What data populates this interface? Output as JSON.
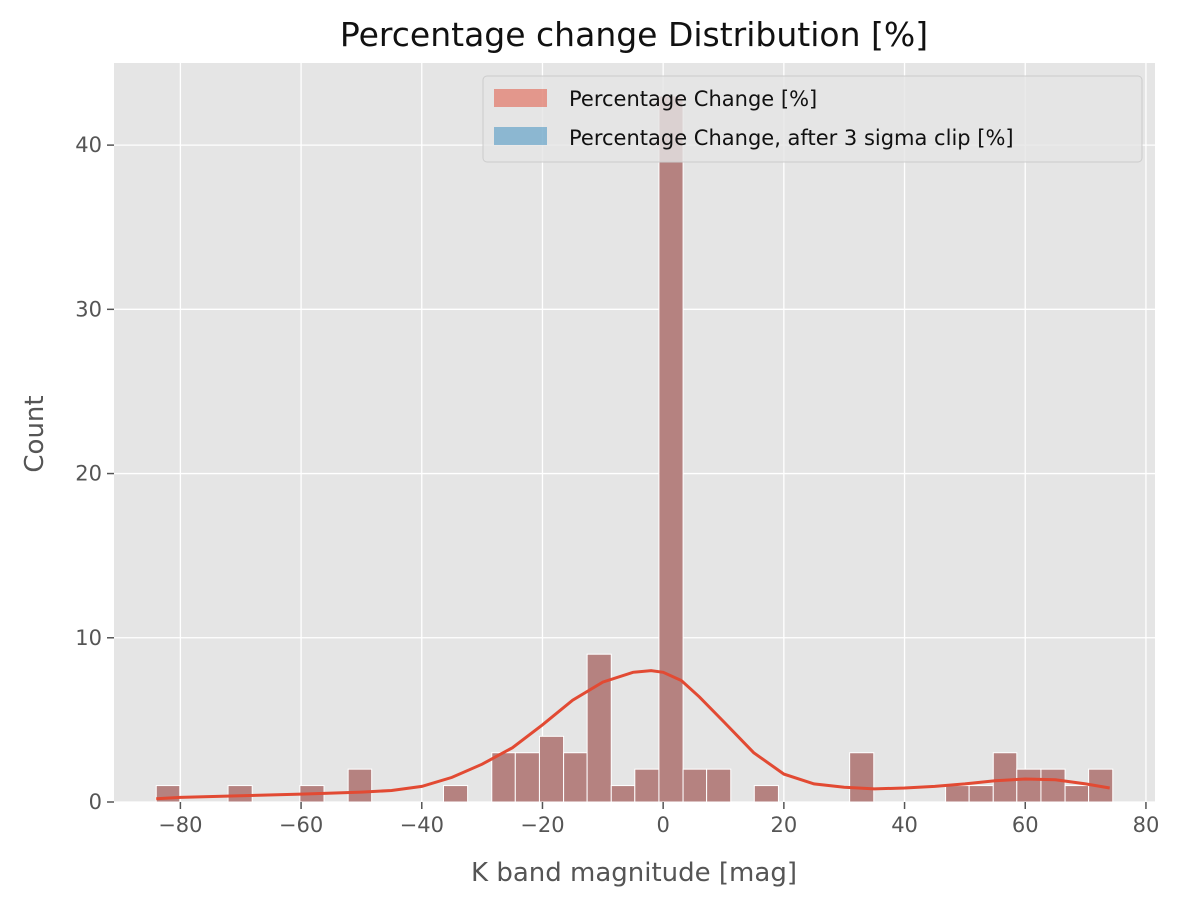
{
  "chart_data": {
    "type": "bar",
    "title": "Percentage change Distribution [%]",
    "xlabel": "K band magnitude [mag]",
    "ylabel": "Count",
    "xlim": [
      -91,
      81.5
    ],
    "ylim": [
      0,
      45
    ],
    "xticks": [
      -80,
      -60,
      -40,
      -20,
      0,
      20,
      40,
      60,
      80
    ],
    "yticks": [
      0,
      10,
      20,
      30,
      40
    ],
    "xtick_labels": [
      "−80",
      "−60",
      "−40",
      "−20",
      "0",
      "20",
      "40",
      "60",
      "80"
    ],
    "ytick_labels": [
      "0",
      "10",
      "20",
      "30",
      "40"
    ],
    "grid": true,
    "legend_position": "top-right",
    "series": [
      {
        "name": "Percentage Change [%]",
        "color": "#E24A33",
        "bins": [
          {
            "x0": -84.0,
            "x1": -80.1,
            "count": 1
          },
          {
            "x0": -72.1,
            "x1": -68.1,
            "count": 1
          },
          {
            "x0": -60.2,
            "x1": -56.2,
            "count": 1
          },
          {
            "x0": -52.2,
            "x1": -48.3,
            "count": 2
          },
          {
            "x0": -36.4,
            "x1": -32.4,
            "count": 1
          },
          {
            "x0": -28.4,
            "x1": -24.5,
            "count": 3
          },
          {
            "x0": -24.5,
            "x1": -20.5,
            "count": 3
          },
          {
            "x0": -20.5,
            "x1": -16.5,
            "count": 4
          },
          {
            "x0": -16.5,
            "x1": -12.6,
            "count": 3
          },
          {
            "x0": -12.6,
            "x1": -8.6,
            "count": 9
          },
          {
            "x0": -8.6,
            "x1": -4.7,
            "count": 1
          },
          {
            "x0": -4.7,
            "x1": -0.7,
            "count": 2
          },
          {
            "x0": -0.7,
            "x1": 3.3,
            "count": 43
          },
          {
            "x0": 3.3,
            "x1": 7.2,
            "count": 2
          },
          {
            "x0": 7.2,
            "x1": 11.2,
            "count": 2
          },
          {
            "x0": 15.1,
            "x1": 19.1,
            "count": 1
          },
          {
            "x0": 30.9,
            "x1": 34.9,
            "count": 3
          },
          {
            "x0": 46.8,
            "x1": 50.7,
            "count": 1
          },
          {
            "x0": 50.7,
            "x1": 54.7,
            "count": 1
          },
          {
            "x0": 54.7,
            "x1": 58.6,
            "count": 3
          },
          {
            "x0": 58.6,
            "x1": 62.6,
            "count": 2
          },
          {
            "x0": 62.6,
            "x1": 66.6,
            "count": 2
          },
          {
            "x0": 66.6,
            "x1": 70.5,
            "count": 1
          },
          {
            "x0": 70.5,
            "x1": 74.5,
            "count": 2
          }
        ]
      },
      {
        "name": "Percentage Change, after 3 sigma clip [%]",
        "color": "#348ABD",
        "bins": []
      }
    ],
    "kde": {
      "color": "#E24A33",
      "x": [
        -84,
        -80,
        -70,
        -60,
        -50,
        -45,
        -40,
        -35,
        -30,
        -25,
        -20,
        -15,
        -10,
        -5,
        -2,
        0,
        3,
        6,
        10,
        15,
        20,
        25,
        30,
        35,
        40,
        45,
        50,
        55,
        60,
        65,
        70,
        74
      ],
      "y": [
        0.2,
        0.28,
        0.38,
        0.48,
        0.6,
        0.7,
        0.95,
        1.5,
        2.3,
        3.3,
        4.7,
        6.2,
        7.3,
        7.9,
        8.0,
        7.9,
        7.4,
        6.4,
        4.9,
        3.0,
        1.7,
        1.1,
        0.9,
        0.8,
        0.85,
        0.95,
        1.1,
        1.3,
        1.4,
        1.35,
        1.1,
        0.85
      ]
    }
  }
}
